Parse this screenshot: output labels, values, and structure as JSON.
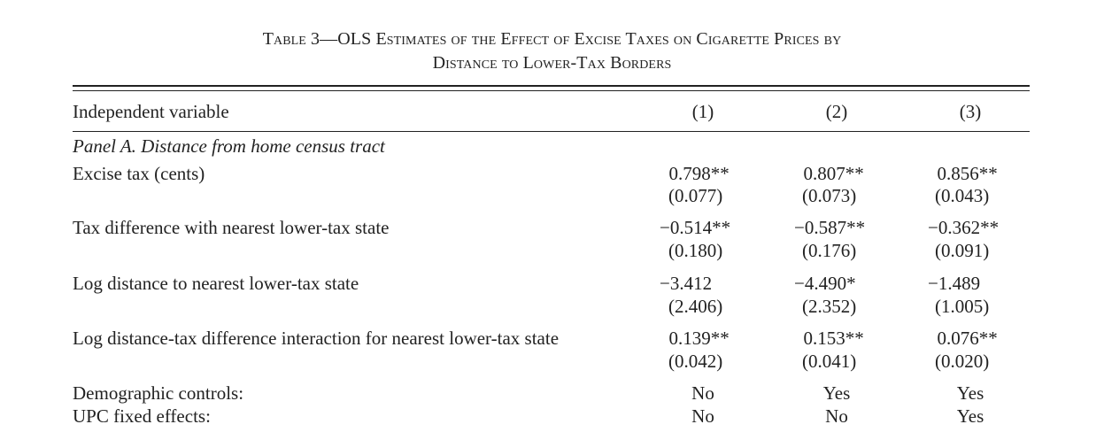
{
  "caption": {
    "line1": "Table 3—OLS Estimates of the Effect of Excise Taxes on Cigarette Prices by",
    "line2": "Distance to Lower-Tax Borders"
  },
  "header": {
    "label": "Independent variable",
    "columns": [
      "(1)",
      "(2)",
      "(3)"
    ]
  },
  "panel_a": {
    "title": "Panel A. Distance from home census tract"
  },
  "rows": [
    {
      "label": "Excise tax (cents)",
      "coef": [
        " 0.798**",
        " 0.807**",
        " 0.856**"
      ],
      "se": [
        "(0.077)",
        "(0.073)",
        "(0.043)"
      ]
    },
    {
      "label": "Tax difference with nearest lower-tax state",
      "coef": [
        "−0.514**",
        "−0.587**",
        "−0.362**"
      ],
      "se": [
        "(0.180)",
        "(0.176)",
        "(0.091)"
      ]
    },
    {
      "label": "Log distance to nearest lower-tax state",
      "coef": [
        "−3.412",
        "−4.490*",
        "−1.489"
      ],
      "se": [
        "(2.406)",
        "(2.352)",
        "(1.005)"
      ]
    },
    {
      "label": "Log distance-tax difference interaction for nearest lower-tax state",
      "coef": [
        " 0.139**",
        " 0.153**",
        " 0.076**"
      ],
      "se": [
        "(0.042)",
        "(0.041)",
        "(0.020)"
      ]
    }
  ],
  "controls": [
    {
      "label": "Demographic controls:",
      "values": [
        "No",
        "Yes",
        "Yes"
      ]
    },
    {
      "label": "UPC fixed effects:",
      "values": [
        "No",
        "No",
        "Yes"
      ]
    }
  ]
}
